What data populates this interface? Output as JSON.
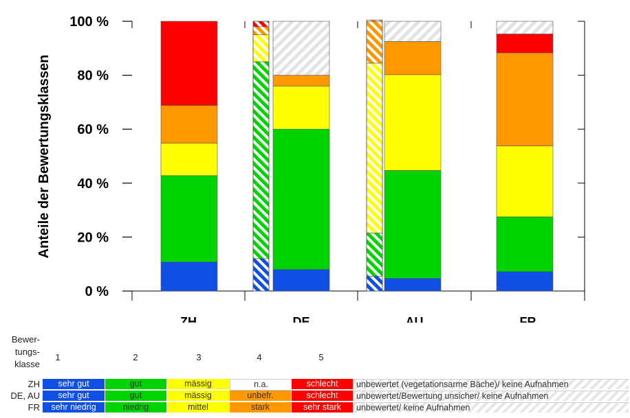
{
  "chart_data": {
    "type": "bar",
    "stacked": true,
    "ylabel": "Anteile der Bewertungsklassen",
    "yticks": [
      "0 %",
      "20 %",
      "40 %",
      "60 %",
      "80 %",
      "100 %"
    ],
    "ylim": [
      0,
      100
    ],
    "grid": false,
    "categories": [
      "ZH",
      "DE",
      "AU",
      "FR"
    ],
    "bars": [
      {
        "category": "ZH",
        "width": "wide",
        "hatched": false,
        "segments": [
          10.8,
          32,
          12,
          14,
          31.2
        ]
      },
      {
        "category": "DE",
        "width": "narrow",
        "hatched": true,
        "segments": [
          12,
          73,
          10,
          3,
          2
        ]
      },
      {
        "category": "DE",
        "width": "wide",
        "hatched": false,
        "segments": [
          8,
          52,
          16,
          4,
          0,
          20
        ]
      },
      {
        "category": "AU",
        "width": "narrow",
        "hatched": true,
        "segments": [
          5.5,
          16,
          63,
          16
        ]
      },
      {
        "category": "AU",
        "width": "wide",
        "hatched": false,
        "segments": [
          4.7,
          40,
          35.5,
          12.3,
          0,
          7.5
        ]
      },
      {
        "category": "FR",
        "width": "wide",
        "hatched": false,
        "segments": [
          7.2,
          20.3,
          26.3,
          34.5,
          7,
          4.7
        ]
      }
    ],
    "legend_placement": "bottom"
  },
  "colors": {
    "class1": "#0f4fe3",
    "class2": "#00d400",
    "class3": "#ffff00",
    "class4": "#ff9800",
    "class5": "#ff0000",
    "class4_zh": "#ffffff",
    "unrated": "#e8e8e8"
  },
  "legend": {
    "header": [
      "Bewer-",
      "tungs-",
      "klasse"
    ],
    "class_numbers": [
      "1",
      "2",
      "3",
      "4",
      "5"
    ],
    "rows": [
      {
        "label": "ZH",
        "cells": [
          "sehr gut",
          "gut",
          "mässig",
          "n.a.",
          "schlecht"
        ],
        "unrated": "unbewertet (vegetationsarme Bäche)/ keine Aufnahmen"
      },
      {
        "label": "DE, AU",
        "cells": [
          "sehr gut",
          "gut",
          "mässig",
          "unbefr.",
          "schlecht"
        ],
        "unrated": "unbewertet/Bewertung unsicher/ keine Aufnahmen"
      },
      {
        "label": "FR",
        "cells": [
          "sehr niedrig",
          "niedrig",
          "mittel",
          "stark",
          "sehr stark"
        ],
        "unrated": "unbewertet/ keine Aufnahmen"
      }
    ]
  }
}
